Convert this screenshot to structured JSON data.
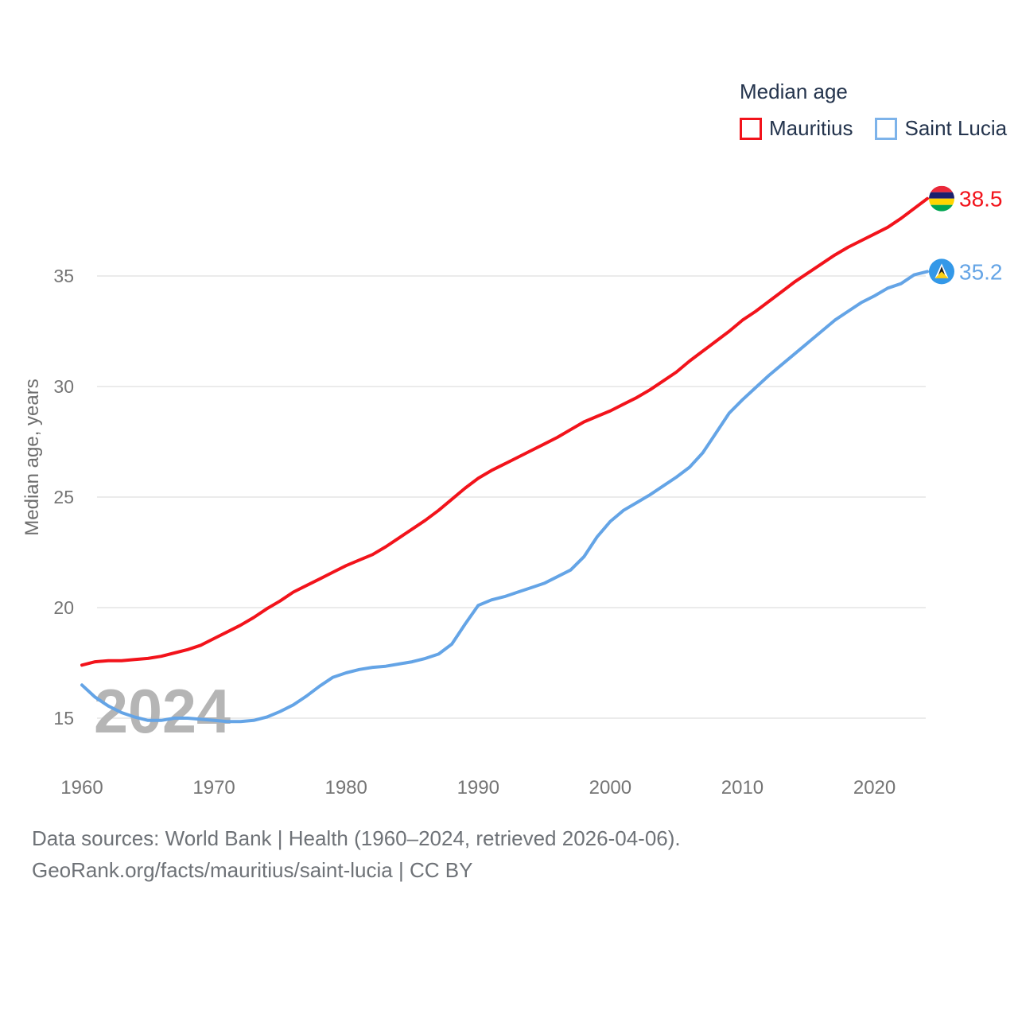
{
  "legend": {
    "title": "Median age",
    "items": [
      {
        "label": "Mauritius",
        "color": "#f2131b"
      },
      {
        "label": "Saint Lucia",
        "color": "#7db3ea"
      }
    ]
  },
  "chart_data": {
    "type": "line",
    "title": "Median age",
    "ylabel": "Median age, years",
    "xlabel": "",
    "xlim": [
      1960,
      2024
    ],
    "ylim": [
      13.5,
      39.5
    ],
    "grid": "horizontal",
    "legend_position": "top-right",
    "watermark": "2024",
    "xticks": [
      1960,
      1970,
      1980,
      1990,
      2000,
      2010,
      2020
    ],
    "yticks": [
      15,
      20,
      25,
      30,
      35
    ],
    "x_start": 1960,
    "x_step": 1,
    "series": [
      {
        "name": "Mauritius",
        "color": "#f2131b",
        "end_label": "38.5",
        "flag": "mauritius",
        "values": [
          17.4,
          17.55,
          17.6,
          17.6,
          17.65,
          17.7,
          17.8,
          17.95,
          18.1,
          18.3,
          18.6,
          18.9,
          19.2,
          19.55,
          19.95,
          20.3,
          20.7,
          21.0,
          21.3,
          21.6,
          21.9,
          22.15,
          22.4,
          22.75,
          23.15,
          23.55,
          23.95,
          24.4,
          24.9,
          25.4,
          25.85,
          26.2,
          26.5,
          26.8,
          27.1,
          27.4,
          27.7,
          28.05,
          28.4,
          28.65,
          28.9,
          29.2,
          29.5,
          29.85,
          30.25,
          30.65,
          31.15,
          31.6,
          32.05,
          32.5,
          33.0,
          33.4,
          33.85,
          34.3,
          34.75,
          35.15,
          35.55,
          35.95,
          36.3,
          36.6,
          36.9,
          37.2,
          37.6,
          38.05,
          38.5
        ]
      },
      {
        "name": "Saint Lucia",
        "color": "#64a4e6",
        "end_label": "35.2",
        "flag": "saint-lucia",
        "values": [
          16.5,
          15.95,
          15.55,
          15.25,
          15.05,
          14.9,
          14.9,
          15.0,
          15.0,
          14.95,
          14.9,
          14.85,
          14.85,
          14.9,
          15.05,
          15.3,
          15.6,
          16.0,
          16.45,
          16.85,
          17.05,
          17.2,
          17.3,
          17.35,
          17.45,
          17.55,
          17.7,
          17.9,
          18.35,
          19.25,
          20.1,
          20.35,
          20.5,
          20.7,
          20.9,
          21.1,
          21.4,
          21.7,
          22.3,
          23.2,
          23.9,
          24.4,
          24.75,
          25.1,
          25.5,
          25.9,
          26.35,
          27.0,
          27.9,
          28.8,
          29.4,
          29.95,
          30.5,
          31.0,
          31.5,
          32.0,
          32.5,
          33.0,
          33.4,
          33.8,
          34.1,
          34.45,
          34.65,
          35.05,
          35.2
        ]
      }
    ],
    "flag_colors": {
      "mauritius": {
        "stripes": [
          "#ea2839",
          "#1a206d",
          "#ffd500",
          "#00a551"
        ]
      },
      "saint_lucia": {
        "field": "#3398e8",
        "triangle_white": "#ffffff",
        "triangle_black": "#222222",
        "triangle_yellow": "#fcd116"
      }
    }
  },
  "axis": {
    "tick_color": "#757575",
    "grid_color": "#ebebeb",
    "axis_title_color": "#6e6e6e",
    "watermark_color": "#b5b5b5"
  },
  "footer": {
    "line1": "Data sources: World Bank | Health (1960–2024, retrieved 2026-04-06).",
    "line2": "GeoRank.org/facts/mauritius/saint-lucia | CC BY"
  }
}
